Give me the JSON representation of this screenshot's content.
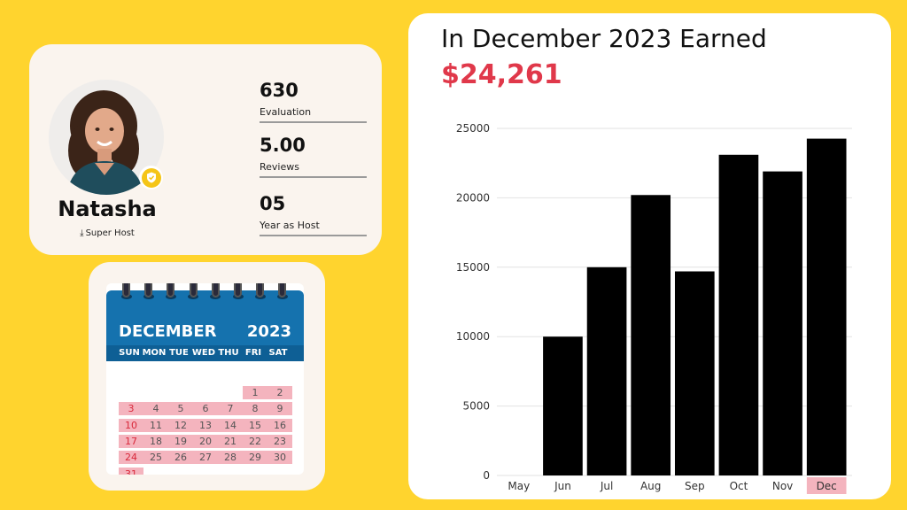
{
  "profile": {
    "name": "Natasha",
    "badge": "Super Host",
    "stats": [
      {
        "value": "630",
        "label": "Evaluation"
      },
      {
        "value": "5.00",
        "label": "Reviews"
      },
      {
        "value": "05",
        "label": "Year as Host"
      }
    ]
  },
  "calendar": {
    "month": "DECEMBER",
    "year": "2023",
    "weekdays": [
      "SUN",
      "MON",
      "TUE",
      "WED",
      "THU",
      "FRI",
      "SAT"
    ],
    "first_weekday": 5,
    "days_in_month": 31
  },
  "earnings": {
    "title": "In December 2023 Earned",
    "amount": "$24,261"
  },
  "chart_data": {
    "type": "bar",
    "categories": [
      "May",
      "Jun",
      "Jul",
      "Aug",
      "Sep",
      "Oct",
      "Nov",
      "Dec"
    ],
    "values": [
      0,
      10000,
      15000,
      20200,
      14700,
      23100,
      21900,
      24261
    ],
    "ylim": [
      0,
      25000
    ],
    "yticks": [
      0,
      5000,
      10000,
      15000,
      20000,
      25000
    ],
    "highlight_category": "Dec",
    "colors": {
      "bar": "#000000",
      "highlight_label_bg": "#F4B4BE",
      "grid": "#E2E2E2"
    }
  }
}
